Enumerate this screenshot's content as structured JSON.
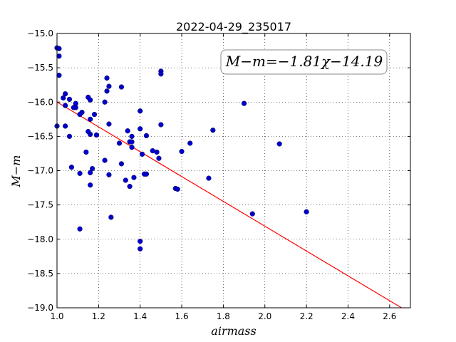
{
  "chart_data": {
    "type": "scatter",
    "title": "2022-04-29_235017",
    "xlabel": "airmass",
    "ylabel": "M−m",
    "annotation": "M−m=−1.81χ−14.19",
    "xlim": [
      1.0,
      2.7
    ],
    "ylim": [
      -19.0,
      -15.0
    ],
    "x_ticks": [
      1.0,
      1.2,
      1.4,
      1.6,
      1.8,
      2.0,
      2.2,
      2.4,
      2.6
    ],
    "x_tick_labels": [
      "1.0",
      "1.2",
      "1.4",
      "1.6",
      "1.8",
      "2.0",
      "2.2",
      "2.4",
      "2.6"
    ],
    "y_ticks": [
      -15.0,
      -15.5,
      -16.0,
      -16.5,
      -17.0,
      -17.5,
      -18.0,
      -18.5,
      -19.0
    ],
    "y_tick_labels": [
      "−15.0",
      "−15.5",
      "−16.0",
      "−16.5",
      "−17.0",
      "−17.5",
      "−18.0",
      "−18.5",
      "−19.0"
    ],
    "grid": true,
    "fit": {
      "slope": -1.81,
      "intercept": -14.19,
      "color": "#ff0000"
    },
    "marker_color": "#0000cc",
    "points": [
      {
        "x": 1.0,
        "y": -15.21
      },
      {
        "x": 1.01,
        "y": -15.22
      },
      {
        "x": 1.01,
        "y": -15.33
      },
      {
        "x": 1.01,
        "y": -15.61
      },
      {
        "x": 1.03,
        "y": -15.94
      },
      {
        "x": 1.04,
        "y": -15.88
      },
      {
        "x": 1.04,
        "y": -16.05
      },
      {
        "x": 1.04,
        "y": -16.35
      },
      {
        "x": 1.0,
        "y": -16.35
      },
      {
        "x": 1.06,
        "y": -15.96
      },
      {
        "x": 1.06,
        "y": -16.5
      },
      {
        "x": 1.07,
        "y": -16.95
      },
      {
        "x": 1.09,
        "y": -16.02
      },
      {
        "x": 1.09,
        "y": -16.08
      },
      {
        "x": 1.08,
        "y": -16.08
      },
      {
        "x": 1.12,
        "y": -16.15
      },
      {
        "x": 1.11,
        "y": -16.18
      },
      {
        "x": 1.11,
        "y": -17.04
      },
      {
        "x": 1.11,
        "y": -17.85
      },
      {
        "x": 1.14,
        "y": -16.73
      },
      {
        "x": 1.15,
        "y": -15.93
      },
      {
        "x": 1.16,
        "y": -15.97
      },
      {
        "x": 1.15,
        "y": -16.43
      },
      {
        "x": 1.16,
        "y": -16.47
      },
      {
        "x": 1.16,
        "y": -16.25
      },
      {
        "x": 1.18,
        "y": -16.18
      },
      {
        "x": 1.17,
        "y": -16.97
      },
      {
        "x": 1.16,
        "y": -17.03
      },
      {
        "x": 1.16,
        "y": -17.21
      },
      {
        "x": 1.19,
        "y": -16.48
      },
      {
        "x": 1.23,
        "y": -16.0
      },
      {
        "x": 1.24,
        "y": -15.65
      },
      {
        "x": 1.24,
        "y": -15.84
      },
      {
        "x": 1.25,
        "y": -15.77
      },
      {
        "x": 1.25,
        "y": -16.32
      },
      {
        "x": 1.23,
        "y": -16.85
      },
      {
        "x": 1.25,
        "y": -17.06
      },
      {
        "x": 1.26,
        "y": -17.68
      },
      {
        "x": 1.31,
        "y": -15.78
      },
      {
        "x": 1.3,
        "y": -16.6
      },
      {
        "x": 1.31,
        "y": -16.9
      },
      {
        "x": 1.33,
        "y": -17.14
      },
      {
        "x": 1.34,
        "y": -16.42
      },
      {
        "x": 1.35,
        "y": -16.58
      },
      {
        "x": 1.36,
        "y": -16.58
      },
      {
        "x": 1.36,
        "y": -16.5
      },
      {
        "x": 1.36,
        "y": -16.66
      },
      {
        "x": 1.37,
        "y": -17.1
      },
      {
        "x": 1.35,
        "y": -17.23
      },
      {
        "x": 1.4,
        "y": -16.13
      },
      {
        "x": 1.4,
        "y": -16.39
      },
      {
        "x": 1.41,
        "y": -16.76
      },
      {
        "x": 1.42,
        "y": -17.05
      },
      {
        "x": 1.43,
        "y": -17.05
      },
      {
        "x": 1.43,
        "y": -16.49
      },
      {
        "x": 1.4,
        "y": -18.03
      },
      {
        "x": 1.4,
        "y": -18.14
      },
      {
        "x": 1.46,
        "y": -16.71
      },
      {
        "x": 1.48,
        "y": -16.73
      },
      {
        "x": 1.49,
        "y": -16.82
      },
      {
        "x": 1.5,
        "y": -15.55
      },
      {
        "x": 1.5,
        "y": -15.59
      },
      {
        "x": 1.5,
        "y": -16.33
      },
      {
        "x": 1.57,
        "y": -17.26
      },
      {
        "x": 1.58,
        "y": -17.27
      },
      {
        "x": 1.6,
        "y": -16.72
      },
      {
        "x": 1.64,
        "y": -16.6
      },
      {
        "x": 1.73,
        "y": -17.11
      },
      {
        "x": 1.75,
        "y": -16.41
      },
      {
        "x": 1.9,
        "y": -16.02
      },
      {
        "x": 1.94,
        "y": -17.63
      },
      {
        "x": 2.07,
        "y": -16.61
      },
      {
        "x": 2.2,
        "y": -17.6
      }
    ]
  }
}
